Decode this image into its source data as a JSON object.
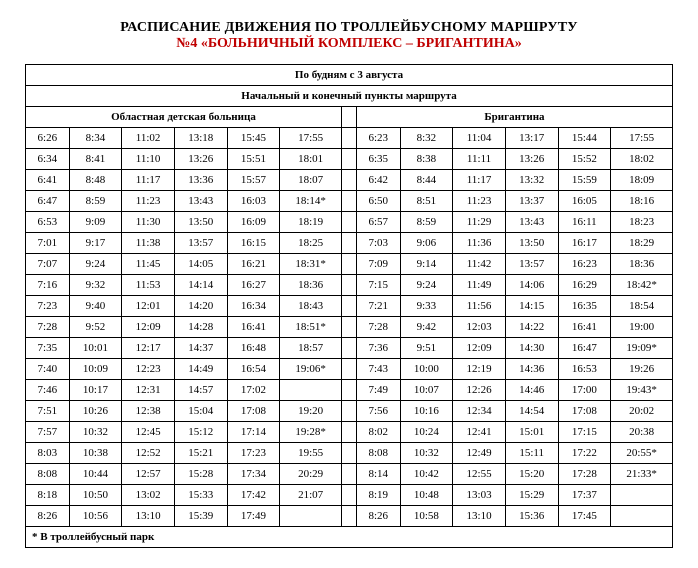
{
  "title_line1": "РАСПИСАНИЕ ДВИЖЕНИЯ ПО ТРОЛЛЕЙБУСНОМУ МАРШРУТУ",
  "title_line2": "№4 «БОЛЬНИЧНЫЙ КОМПЛЕКС – БРИГАНТИНА»",
  "header_row1": "По будням с 3 августа",
  "header_row2": "Начальный и конечный пункты маршрута",
  "left_header": "Областная детская больница",
  "right_header": "Бригантина",
  "footnote": "* В троллейбусный парк",
  "colors": {
    "text": "#000000",
    "accent": "#c00000",
    "background": "#ffffff",
    "border": "#000000"
  },
  "left": [
    [
      "6:26",
      "8:34",
      "11:02",
      "13:18",
      "15:45",
      "17:55"
    ],
    [
      "6:34",
      "8:41",
      "11:10",
      "13:26",
      "15:51",
      "18:01"
    ],
    [
      "6:41",
      "8:48",
      "11:17",
      "13:36",
      "15:57",
      "18:07"
    ],
    [
      "6:47",
      "8:59",
      "11:23",
      "13:43",
      "16:03",
      "18:14*"
    ],
    [
      "6:53",
      "9:09",
      "11:30",
      "13:50",
      "16:09",
      "18:19"
    ],
    [
      "7:01",
      "9:17",
      "11:38",
      "13:57",
      "16:15",
      "18:25"
    ],
    [
      "7:07",
      "9:24",
      "11:45",
      "14:05",
      "16:21",
      "18:31*"
    ],
    [
      "7:16",
      "9:32",
      "11:53",
      "14:14",
      "16:27",
      "18:36"
    ],
    [
      "7:23",
      "9:40",
      "12:01",
      "14:20",
      "16:34",
      "18:43"
    ],
    [
      "7:28",
      "9:52",
      "12:09",
      "14:28",
      "16:41",
      "18:51*"
    ],
    [
      "7:35",
      "10:01",
      "12:17",
      "14:37",
      "16:48",
      "18:57"
    ],
    [
      "7:40",
      "10:09",
      "12:23",
      "14:49",
      "16:54",
      "19:06*"
    ],
    [
      "7:46",
      "10:17",
      "12:31",
      "14:57",
      "17:02",
      ""
    ],
    [
      "7:51",
      "10:26",
      "12:38",
      "15:04",
      "17:08",
      "19:20"
    ],
    [
      "7:57",
      "10:32",
      "12:45",
      "15:12",
      "17:14",
      "19:28*"
    ],
    [
      "8:03",
      "10:38",
      "12:52",
      "15:21",
      "17:23",
      "19:55"
    ],
    [
      "8:08",
      "10:44",
      "12:57",
      "15:28",
      "17:34",
      "20:29"
    ],
    [
      "8:18",
      "10:50",
      "13:02",
      "15:33",
      "17:42",
      "21:07"
    ],
    [
      "8:26",
      "10:56",
      "13:10",
      "15:39",
      "17:49",
      ""
    ]
  ],
  "right": [
    [
      "6:23",
      "8:32",
      "11:04",
      "13:17",
      "15:44",
      "17:55"
    ],
    [
      "6:35",
      "8:38",
      "11:11",
      "13:26",
      "15:52",
      "18:02"
    ],
    [
      "6:42",
      "8:44",
      "11:17",
      "13:32",
      "15:59",
      "18:09"
    ],
    [
      "6:50",
      "8:51",
      "11:23",
      "13:37",
      "16:05",
      "18:16"
    ],
    [
      "6:57",
      "8:59",
      "11:29",
      "13:43",
      "16:11",
      "18:23"
    ],
    [
      "7:03",
      "9:06",
      "11:36",
      "13:50",
      "16:17",
      "18:29"
    ],
    [
      "7:09",
      "9:14",
      "11:42",
      "13:57",
      "16:23",
      "18:36"
    ],
    [
      "7:15",
      "9:24",
      "11:49",
      "14:06",
      "16:29",
      "18:42*"
    ],
    [
      "7:21",
      "9:33",
      "11:56",
      "14:15",
      "16:35",
      "18:54"
    ],
    [
      "7:28",
      "9:42",
      "12:03",
      "14:22",
      "16:41",
      "19:00"
    ],
    [
      "7:36",
      "9:51",
      "12:09",
      "14:30",
      "16:47",
      "19:09*"
    ],
    [
      "7:43",
      "10:00",
      "12:19",
      "14:36",
      "16:53",
      "19:26"
    ],
    [
      "7:49",
      "10:07",
      "12:26",
      "14:46",
      "17:00",
      "19:43*"
    ],
    [
      "7:56",
      "10:16",
      "12:34",
      "14:54",
      "17:08",
      "20:02"
    ],
    [
      "8:02",
      "10:24",
      "12:41",
      "15:01",
      "17:15",
      "20:38"
    ],
    [
      "8:08",
      "10:32",
      "12:49",
      "15:11",
      "17:22",
      "20:55*"
    ],
    [
      "8:14",
      "10:42",
      "12:55",
      "15:20",
      "17:28",
      "21:33*"
    ],
    [
      "8:19",
      "10:48",
      "13:03",
      "15:29",
      "17:37",
      ""
    ],
    [
      "8:26",
      "10:58",
      "13:10",
      "15:36",
      "17:45",
      ""
    ]
  ]
}
